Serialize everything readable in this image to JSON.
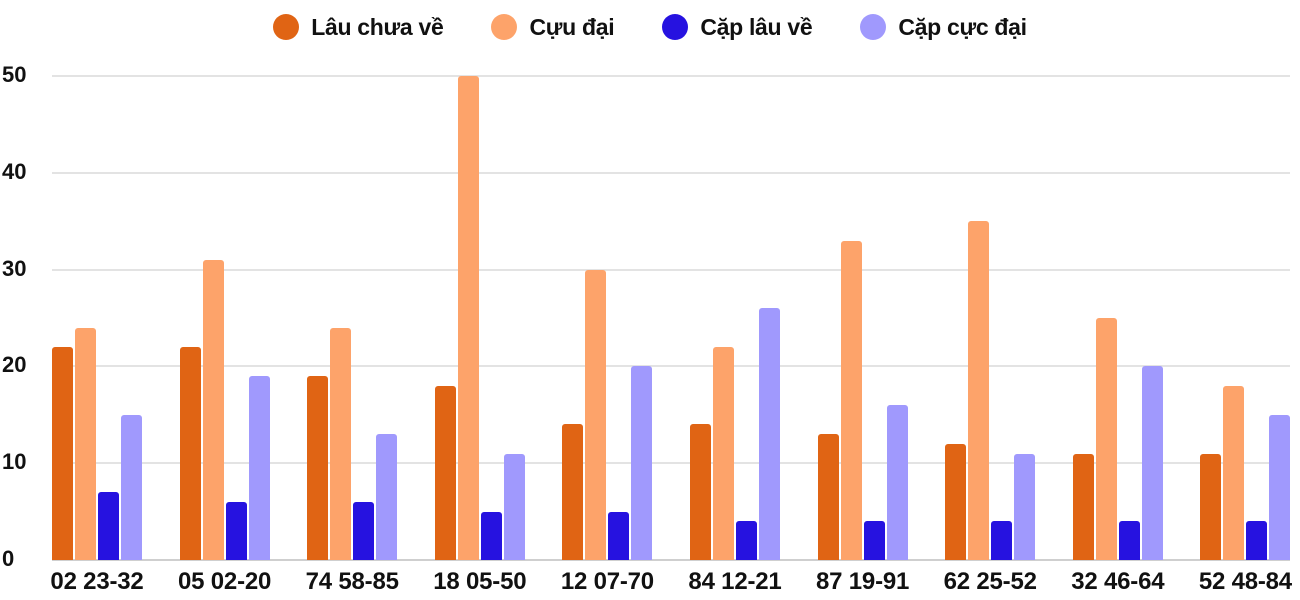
{
  "chart_data": {
    "type": "bar",
    "title": "",
    "xlabel": "",
    "ylabel": "",
    "ylim": [
      0,
      50
    ],
    "yticks": [
      0,
      10,
      20,
      30,
      40,
      50
    ],
    "grid": true,
    "legend_position": "top",
    "categories": [
      "02 23-32",
      "05 02-20",
      "74 58-85",
      "18 05-50",
      "12 07-70",
      "84 12-21",
      "87 19-91",
      "62 25-52",
      "32 46-64",
      "52 48-84"
    ],
    "series": [
      {
        "name": "Lâu chưa về",
        "color": "#e06414",
        "values": [
          22,
          22,
          19,
          18,
          14,
          14,
          13,
          12,
          11,
          11
        ]
      },
      {
        "name": "Cựu đại",
        "color": "#fda36a",
        "values": [
          24,
          31,
          24,
          50,
          30,
          22,
          33,
          35,
          25,
          18
        ]
      },
      {
        "name": "Cặp lâu về",
        "color": "#2612e0",
        "values": [
          7,
          6,
          6,
          5,
          5,
          4,
          4,
          4,
          4,
          4
        ]
      },
      {
        "name": "Cặp cực đại",
        "color": "#a099fd",
        "values": [
          15,
          19,
          13,
          11,
          20,
          26,
          16,
          11,
          20,
          15
        ]
      }
    ]
  }
}
